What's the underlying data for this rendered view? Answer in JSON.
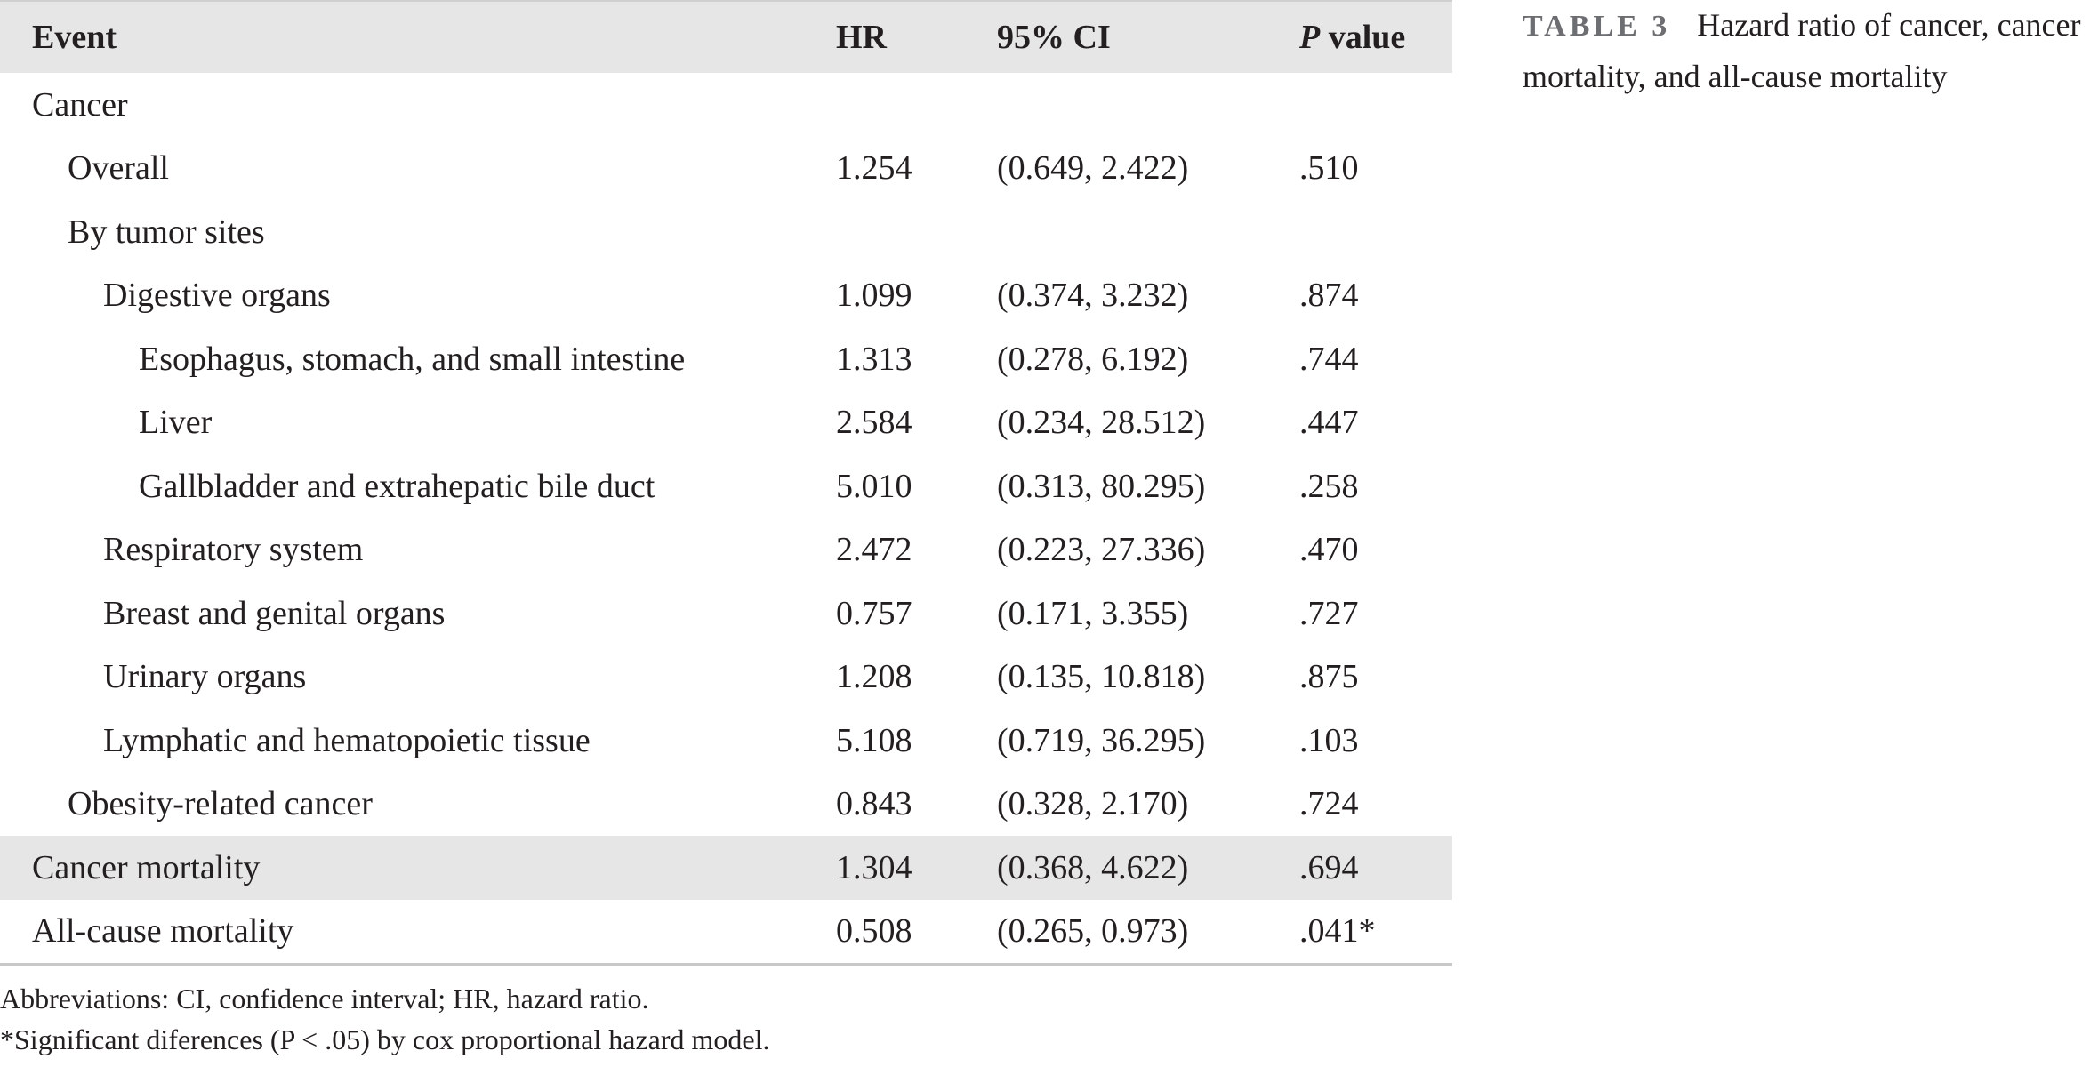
{
  "table": {
    "header": {
      "event": "Event",
      "hr": "HR",
      "ci": "95% CI",
      "p_italic": "P",
      "p_rest": " value"
    },
    "rows": [
      {
        "event": "Cancer",
        "hr": "",
        "ci": "",
        "p": ""
      },
      {
        "event": "Overall",
        "hr": "1.254",
        "ci": "(0.649, 2.422)",
        "p": ".510"
      },
      {
        "event": "By tumor sites",
        "hr": "",
        "ci": "",
        "p": ""
      },
      {
        "event": "Digestive organs",
        "hr": "1.099",
        "ci": "(0.374, 3.232)",
        "p": ".874"
      },
      {
        "event": "Esophagus, stomach, and small intestine",
        "hr": "1.313",
        "ci": "(0.278, 6.192)",
        "p": ".744"
      },
      {
        "event": "Liver",
        "hr": "2.584",
        "ci": "(0.234, 28.512)",
        "p": ".447"
      },
      {
        "event": "Gallbladder and extrahepatic bile duct",
        "hr": "5.010",
        "ci": "(0.313, 80.295)",
        "p": ".258"
      },
      {
        "event": "Respiratory system",
        "hr": "2.472",
        "ci": "(0.223, 27.336)",
        "p": ".470"
      },
      {
        "event": "Breast and genital organs",
        "hr": "0.757",
        "ci": "(0.171, 3.355)",
        "p": ".727"
      },
      {
        "event": "Urinary organs",
        "hr": "1.208",
        "ci": "(0.135, 10.818)",
        "p": ".875"
      },
      {
        "event": "Lymphatic and hematopoietic tissue",
        "hr": "5.108",
        "ci": "(0.719, 36.295)",
        "p": ".103"
      },
      {
        "event": "Obesity-related cancer",
        "hr": "0.843",
        "ci": "(0.328, 2.170)",
        "p": ".724"
      },
      {
        "event": "Cancer mortality",
        "hr": "1.304",
        "ci": "(0.368, 4.622)",
        "p": ".694"
      },
      {
        "event": "All-cause mortality",
        "hr": "0.508",
        "ci": "(0.265, 0.973)",
        "p": ".041*"
      }
    ]
  },
  "footnotes": {
    "abbreviations": "Abbreviations: CI, confidence interval; HR, hazard ratio.",
    "significance": "*Significant diferences (P < .05) by cox proportional hazard model."
  },
  "caption": {
    "label": "TABLE 3",
    "text": "Hazard ratio of cancer, cancer mortality, and all-cause mortality"
  }
}
